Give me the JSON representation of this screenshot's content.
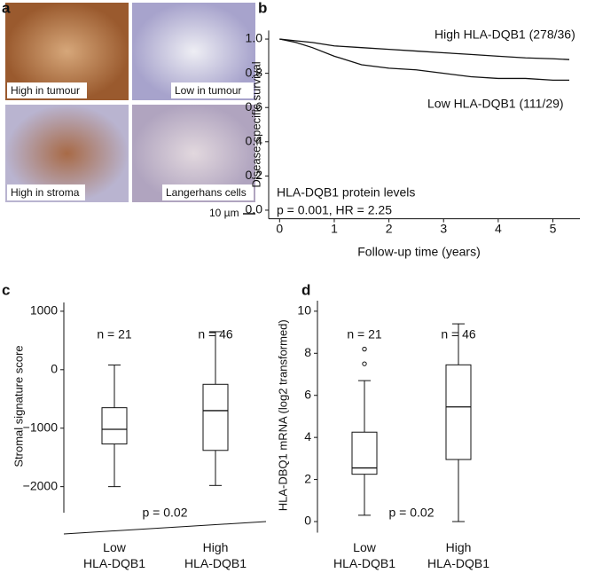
{
  "panels": [
    "a",
    "b",
    "c",
    "d"
  ],
  "micrographs": {
    "labels": [
      "High in tumour",
      "Low in tumour",
      "High in stroma",
      "Langerhans cells"
    ],
    "scale_bar": "10 µm"
  },
  "chart_data": [
    {
      "type": "line",
      "y_label": "Disease-specific survival",
      "x_label": "Follow-up time (years)",
      "annotations": [
        "HLA-DQB1 protein levels",
        "p = 0.001, HR = 2.25"
      ],
      "series": [
        {
          "name": "High HLA-DQB1 (278/36)",
          "color": "#111111",
          "x": [
            0,
            0.3,
            0.6,
            1,
            1.5,
            2,
            2.5,
            3,
            3.5,
            4,
            4.5,
            5,
            5.3
          ],
          "values": [
            1.0,
            0.99,
            0.98,
            0.96,
            0.95,
            0.94,
            0.93,
            0.92,
            0.91,
            0.9,
            0.89,
            0.885,
            0.88
          ]
        },
        {
          "name": "Low HLA-DQB1 (111/29)",
          "color": "#111111",
          "x": [
            0,
            0.3,
            0.6,
            1,
            1.5,
            2,
            2.5,
            3,
            3.5,
            4,
            4.5,
            5,
            5.3
          ],
          "values": [
            1.0,
            0.98,
            0.95,
            0.9,
            0.85,
            0.83,
            0.82,
            0.8,
            0.78,
            0.77,
            0.77,
            0.76,
            0.76
          ]
        }
      ],
      "xlim": [
        -0.2,
        5.3
      ],
      "xticks": [
        0,
        1,
        2,
        3,
        4,
        5
      ],
      "ylim": [
        -0.05,
        1.05
      ],
      "yticks": [
        {
          "value": 0,
          "label": "0.0"
        },
        {
          "value": 0.2,
          "label": "0.2"
        },
        {
          "value": 0.4,
          "label": "0.4"
        },
        {
          "value": 0.6,
          "label": "0.6"
        },
        {
          "value": 0.8,
          "label": "0.8"
        },
        {
          "value": 1,
          "label": "1.0"
        }
      ]
    },
    {
      "type": "box",
      "y_label": "Stromal signature score",
      "categories": [
        "Low HLA-DQB1",
        "High HLA-DQB1"
      ],
      "n_labels": [
        "n = 21",
        "n = 46"
      ],
      "annotation": "p = 0.02",
      "boxes": [
        {
          "min": -2000,
          "q1": -1270,
          "median": -1020,
          "q3": -650,
          "max": 80,
          "outliers": []
        },
        {
          "min": -1980,
          "q1": -1380,
          "median": -700,
          "q3": -250,
          "max": 650,
          "outliers": []
        }
      ],
      "ylim": [
        -2400,
        1150
      ],
      "yticks": [
        {
          "value": -2000,
          "label": "−2000"
        },
        {
          "value": -1000,
          "label": "−1000"
        },
        0,
        1000
      ]
    },
    {
      "type": "box",
      "y_label": "HLA-DBQ1 mRNA (log2 transformed)",
      "categories": [
        "Low HLA-DQB1",
        "High HLA-DQB1"
      ],
      "n_labels": [
        "n = 21",
        "n = 46"
      ],
      "annotation": "p = 0.02",
      "boxes": [
        {
          "min": 0.3,
          "q1": 2.25,
          "median": 2.55,
          "q3": 4.25,
          "max": 6.7,
          "outliers": [
            7.5,
            8.2
          ]
        },
        {
          "min": 0,
          "q1": 2.95,
          "median": 5.45,
          "q3": 7.45,
          "max": 9.4,
          "outliers": []
        }
      ],
      "ylim": [
        -0.4,
        10.5
      ],
      "yticks": [
        0,
        2,
        4,
        6,
        8,
        10
      ]
    }
  ]
}
